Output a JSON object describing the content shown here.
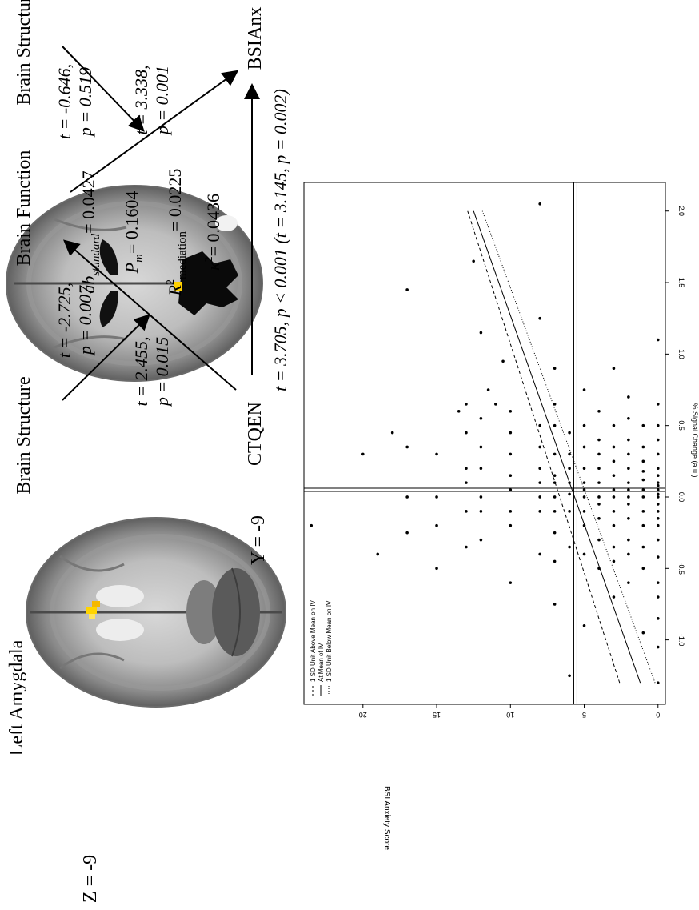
{
  "brain_panel": {
    "region_label": "Left Amygdala",
    "axial_label": "Z = -9",
    "coronal_label": "Y = -9"
  },
  "mediation": {
    "node_structure_top": "Brain Structure",
    "node_structure_bottom": "Brain Structure",
    "node_function": "Brain Function",
    "node_outcome": "BSIAnx",
    "node_predictor": "CTQEN",
    "path_structure_function": [
      "t = -2.725,",
      "p = 0.007"
    ],
    "path_a": [
      "t = 2.455,",
      "p = 0.015"
    ],
    "path_structure_outcome": [
      "t = -0.646,",
      "p = 0.519"
    ],
    "path_b": [
      "t = 3.338,",
      "p = 0.001"
    ],
    "path_c": "t = 3.705, p < 0.001 (t = 3.145, p = 0.002)",
    "effect_sizes": {
      "ab_standard": "= 0.0427",
      "pm": "= 0.1604",
      "r2_mediation": "= 0.0225",
      "kappa2": "= 0.0436"
    }
  },
  "chart_data": {
    "type": "scatter",
    "xlabel": "% Signal Change (a.u.)",
    "ylabel": "BSI Anxiety Score",
    "xlim": [
      -1.45,
      2.2
    ],
    "ylim": [
      -0.5,
      24
    ],
    "x_ticks": [
      -1.0,
      -0.5,
      0.0,
      0.5,
      1.0,
      1.5,
      2.0
    ],
    "y_ticks": [
      0,
      5,
      10,
      15,
      20
    ],
    "x_tick_labels": [
      "-1.0",
      "-0.5",
      "0.0",
      "0.5",
      "1.0",
      "1.5",
      "2.0"
    ],
    "y_tick_labels": [
      "0",
      "5",
      "10",
      "15",
      "20"
    ],
    "legend": {
      "position": "top-left",
      "entries": [
        "1 SD Unit Above Mean on IV",
        "At Mean of IV",
        "1 SD Unit Below Mean on IV"
      ]
    },
    "reference_lines": {
      "x_mean": 0.05,
      "y_mean": 5.6
    },
    "series": [
      {
        "style": "dashed",
        "x": [
          -1.3,
          2.0
        ],
        "y": [
          2.6,
          12.9
        ]
      },
      {
        "style": "solid",
        "x": [
          -1.3,
          2.0
        ],
        "y": [
          1.2,
          12.5
        ]
      },
      {
        "style": "dotted",
        "x": [
          -1.3,
          2.0
        ],
        "y": [
          0.2,
          11.9
        ]
      }
    ],
    "points": [
      [
        -1.3,
        0
      ],
      [
        -1.05,
        0
      ],
      [
        -0.85,
        0
      ],
      [
        -0.7,
        0
      ],
      [
        -0.6,
        0
      ],
      [
        -0.42,
        0
      ],
      [
        -0.3,
        0
      ],
      [
        -0.2,
        0
      ],
      [
        -0.15,
        0
      ],
      [
        -0.1,
        0
      ],
      [
        -0.05,
        0
      ],
      [
        0.0,
        0
      ],
      [
        0.02,
        0
      ],
      [
        0.05,
        0
      ],
      [
        0.08,
        0
      ],
      [
        0.1,
        0
      ],
      [
        0.15,
        0
      ],
      [
        0.2,
        0
      ],
      [
        0.3,
        0
      ],
      [
        0.4,
        0
      ],
      [
        0.5,
        0
      ],
      [
        0.65,
        0
      ],
      [
        1.1,
        0
      ],
      [
        -0.95,
        1
      ],
      [
        -0.5,
        1
      ],
      [
        -0.35,
        1
      ],
      [
        -0.2,
        1
      ],
      [
        -0.1,
        1
      ],
      [
        0.0,
        1
      ],
      [
        0.05,
        1
      ],
      [
        0.12,
        1
      ],
      [
        0.18,
        1
      ],
      [
        0.25,
        1
      ],
      [
        0.35,
        1
      ],
      [
        0.5,
        1
      ],
      [
        -0.6,
        2
      ],
      [
        -0.4,
        2
      ],
      [
        -0.3,
        2
      ],
      [
        -0.15,
        2
      ],
      [
        -0.05,
        2
      ],
      [
        0.0,
        2
      ],
      [
        0.05,
        2
      ],
      [
        0.1,
        2
      ],
      [
        0.2,
        2
      ],
      [
        0.3,
        2
      ],
      [
        0.4,
        2
      ],
      [
        0.55,
        2
      ],
      [
        0.7,
        2
      ],
      [
        -0.7,
        3
      ],
      [
        -0.45,
        3
      ],
      [
        -0.35,
        3
      ],
      [
        -0.2,
        3
      ],
      [
        -0.1,
        3
      ],
      [
        0.0,
        3
      ],
      [
        0.05,
        3
      ],
      [
        0.15,
        3
      ],
      [
        0.25,
        3
      ],
      [
        0.35,
        3
      ],
      [
        0.5,
        3
      ],
      [
        0.9,
        3
      ],
      [
        -0.5,
        4
      ],
      [
        -0.3,
        4
      ],
      [
        -0.15,
        4
      ],
      [
        -0.05,
        4
      ],
      [
        0.0,
        4
      ],
      [
        0.1,
        4
      ],
      [
        0.2,
        4
      ],
      [
        0.3,
        4
      ],
      [
        0.4,
        4
      ],
      [
        0.6,
        4
      ],
      [
        -0.9,
        5
      ],
      [
        -0.4,
        5
      ],
      [
        -0.2,
        5
      ],
      [
        -0.1,
        5
      ],
      [
        0.0,
        5
      ],
      [
        0.05,
        5
      ],
      [
        0.1,
        5
      ],
      [
        0.2,
        5
      ],
      [
        0.35,
        5
      ],
      [
        0.5,
        5
      ],
      [
        0.75,
        5
      ],
      [
        -1.25,
        6
      ],
      [
        -0.35,
        6
      ],
      [
        -0.1,
        6
      ],
      [
        0.02,
        6
      ],
      [
        0.1,
        6
      ],
      [
        0.2,
        6
      ],
      [
        0.3,
        6
      ],
      [
        0.45,
        6
      ],
      [
        -0.75,
        7
      ],
      [
        -0.45,
        7
      ],
      [
        -0.25,
        7
      ],
      [
        -0.1,
        7
      ],
      [
        0.0,
        7
      ],
      [
        0.1,
        7
      ],
      [
        0.15,
        7
      ],
      [
        0.3,
        7
      ],
      [
        0.5,
        7
      ],
      [
        0.65,
        7
      ],
      [
        0.9,
        7
      ],
      [
        -0.4,
        8
      ],
      [
        -0.1,
        8
      ],
      [
        0.0,
        8
      ],
      [
        0.1,
        8
      ],
      [
        0.2,
        8
      ],
      [
        0.35,
        8
      ],
      [
        0.5,
        8
      ],
      [
        1.25,
        8
      ],
      [
        -0.6,
        10
      ],
      [
        -0.2,
        10
      ],
      [
        -0.1,
        10
      ],
      [
        0.05,
        10
      ],
      [
        0.15,
        10
      ],
      [
        0.3,
        10
      ],
      [
        0.45,
        10
      ],
      [
        0.6,
        10
      ],
      [
        -0.3,
        12
      ],
      [
        -0.1,
        12
      ],
      [
        0.0,
        12
      ],
      [
        0.2,
        12
      ],
      [
        0.35,
        12
      ],
      [
        0.55,
        12
      ],
      [
        -0.35,
        13
      ],
      [
        -0.1,
        13
      ],
      [
        0.1,
        13
      ],
      [
        0.2,
        13
      ],
      [
        0.45,
        13
      ],
      [
        0.65,
        13
      ],
      [
        -0.5,
        15
      ],
      [
        -0.2,
        15
      ],
      [
        0.0,
        15
      ],
      [
        0.3,
        15
      ],
      [
        -0.25,
        17
      ],
      [
        0.0,
        17
      ],
      [
        0.35,
        17
      ],
      [
        -0.4,
        19
      ],
      [
        0.45,
        18
      ],
      [
        0.3,
        20
      ],
      [
        -0.2,
        23.5
      ],
      [
        0.6,
        13.5
      ],
      [
        0.65,
        11
      ],
      [
        0.75,
        11.5
      ],
      [
        0.95,
        10.5
      ],
      [
        1.15,
        12
      ],
      [
        1.45,
        17
      ],
      [
        1.65,
        12.5
      ],
      [
        2.05,
        8
      ]
    ]
  }
}
